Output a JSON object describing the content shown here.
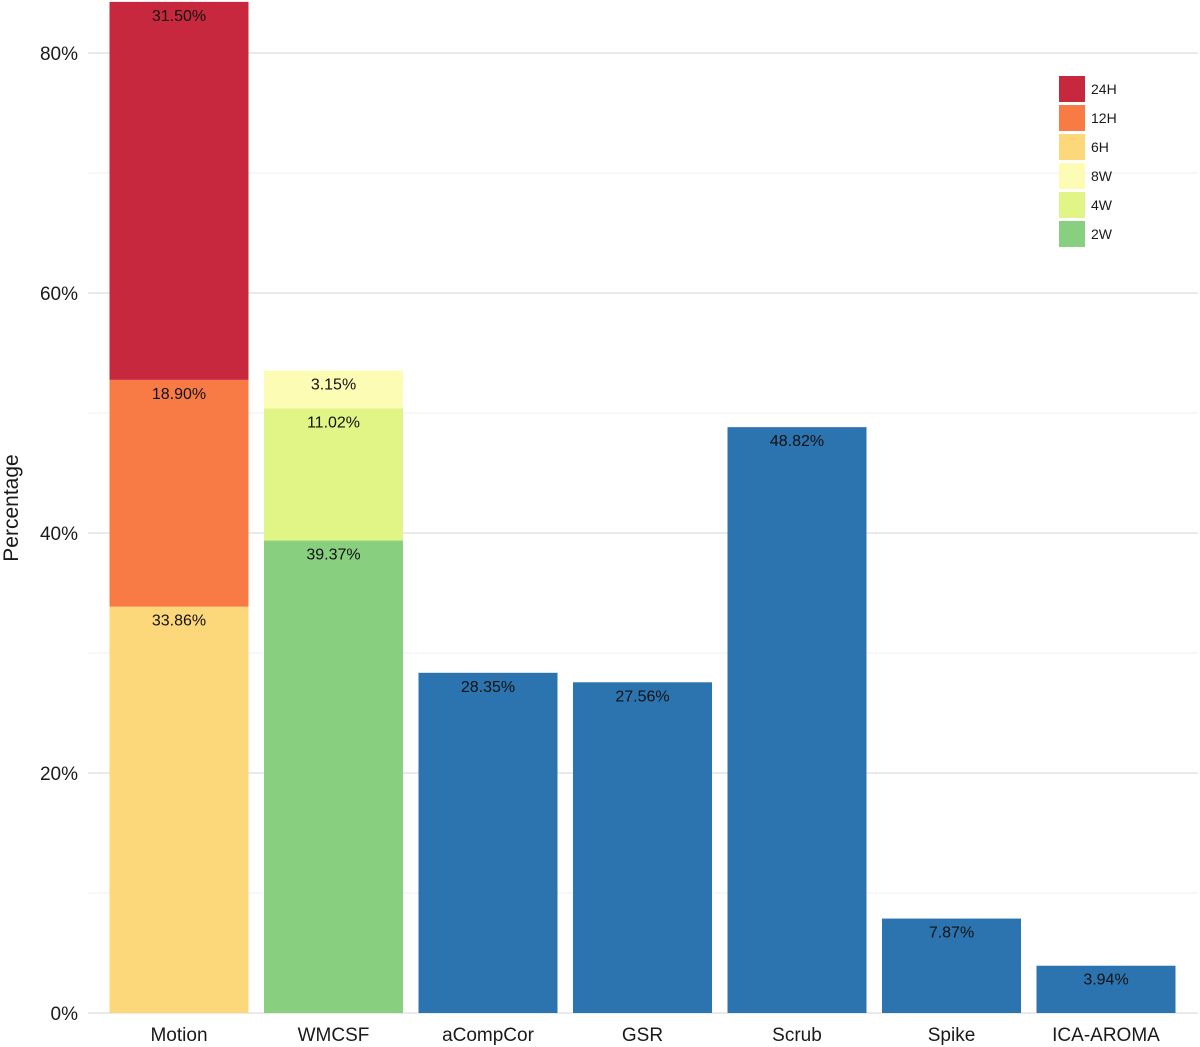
{
  "chart_data": {
    "type": "bar",
    "stacked": true,
    "title": "",
    "xlabel": "",
    "ylabel": "Percentage",
    "ylim": [
      0,
      84.5
    ],
    "y_ticks": [
      0,
      20,
      40,
      60,
      80
    ],
    "y_tick_labels": [
      "0%",
      "20%",
      "40%",
      "60%",
      "80%"
    ],
    "grid": true,
    "legend_position": "top-right",
    "categories": [
      "Motion",
      "WMCSF",
      "aCompCor",
      "GSR",
      "Scrub",
      "Spike",
      "ICA-AROMA"
    ],
    "series": [
      {
        "name": "6H",
        "color": "#fdd87b",
        "values": [
          33.86,
          null,
          null,
          null,
          null,
          null,
          null
        ],
        "labels": [
          "33.86%",
          "",
          "",
          "",
          "",
          "",
          ""
        ]
      },
      {
        "name": "12H",
        "color": "#f87b46",
        "values": [
          18.9,
          null,
          null,
          null,
          null,
          null,
          null
        ],
        "labels": [
          "18.90%",
          "",
          "",
          "",
          "",
          "",
          ""
        ]
      },
      {
        "name": "24H",
        "color": "#c8283e",
        "values": [
          31.5,
          null,
          null,
          null,
          null,
          null,
          null
        ],
        "labels": [
          "31.50%",
          "",
          "",
          "",
          "",
          "",
          ""
        ]
      },
      {
        "name": "2W",
        "color": "#88cf7f",
        "values": [
          null,
          39.37,
          null,
          null,
          null,
          null,
          null
        ],
        "labels": [
          "",
          "39.37%",
          "",
          "",
          "",
          "",
          ""
        ]
      },
      {
        "name": "4W",
        "color": "#e0f585",
        "values": [
          null,
          11.02,
          null,
          null,
          null,
          null,
          null
        ],
        "labels": [
          "",
          "11.02%",
          "",
          "",
          "",
          "",
          ""
        ]
      },
      {
        "name": "8W",
        "color": "#fdfcb5",
        "values": [
          null,
          3.15,
          null,
          null,
          null,
          null,
          null
        ],
        "labels": [
          "",
          "3.15%",
          "",
          "",
          "",
          "",
          ""
        ]
      },
      {
        "name": "",
        "color": "#2b74b0",
        "values": [
          null,
          null,
          28.35,
          27.56,
          48.82,
          7.87,
          3.94
        ],
        "labels": [
          "",
          "",
          "28.35%",
          "27.56%",
          "48.82%",
          "7.87%",
          "3.94%"
        ]
      }
    ],
    "legend": [
      {
        "label": "24H",
        "color": "#c8283e"
      },
      {
        "label": "12H",
        "color": "#f87b46"
      },
      {
        "label": "6H",
        "color": "#fdd87b"
      },
      {
        "label": "8W",
        "color": "#fdfcb5"
      },
      {
        "label": "4W",
        "color": "#e0f585"
      },
      {
        "label": "2W",
        "color": "#88cf7f"
      }
    ]
  }
}
